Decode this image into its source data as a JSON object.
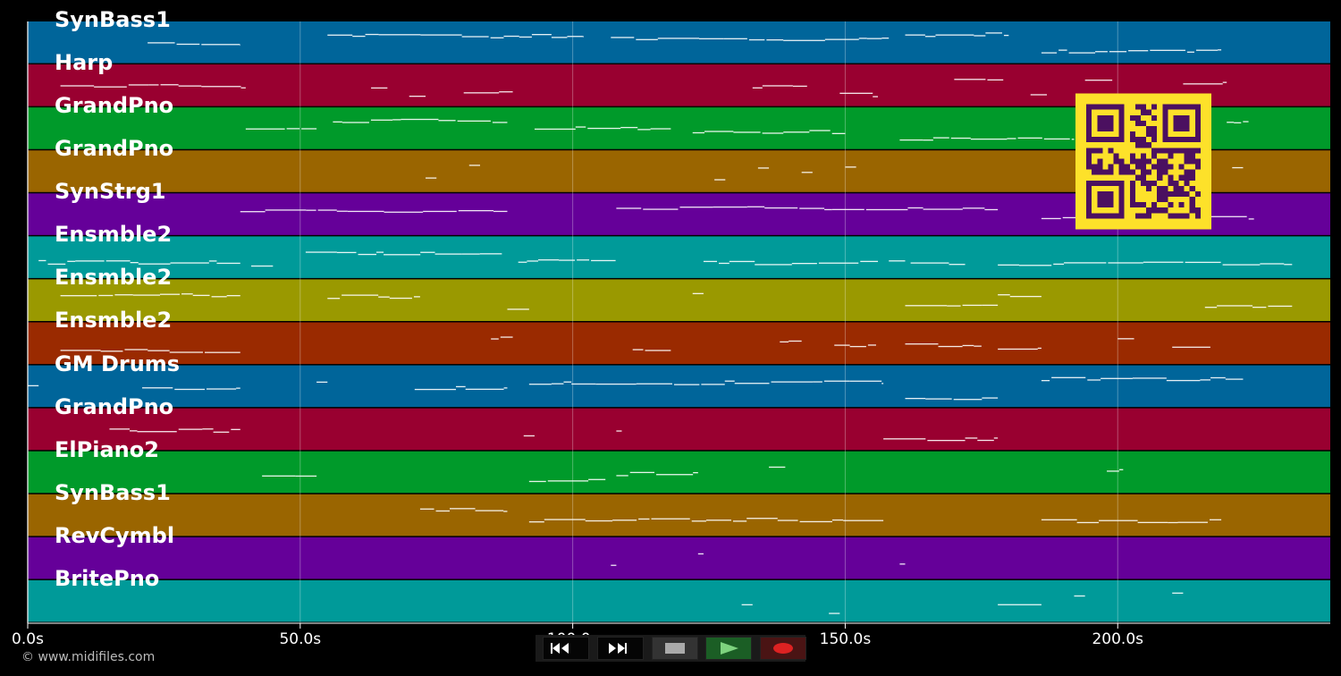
{
  "tracks": [
    {
      "name": "SynBass1",
      "color": "#00659a"
    },
    {
      "name": "Harp",
      "color": "#990030"
    },
    {
      "name": "GrandPno",
      "color": "#009a2a"
    },
    {
      "name": "GrandPno",
      "color": "#9a6500"
    },
    {
      "name": "SynStrg1",
      "color": "#650099"
    },
    {
      "name": "Ensmble2",
      "color": "#009a99"
    },
    {
      "name": "Ensmble2",
      "color": "#9a9900"
    },
    {
      "name": "Ensmble2",
      "color": "#9a2a00"
    },
    {
      "name": "GM Drums",
      "color": "#00659a"
    },
    {
      "name": "GrandPno",
      "color": "#990030"
    },
    {
      "name": "ElPiano2",
      "color": "#009a2a"
    },
    {
      "name": "SynBass1",
      "color": "#9a6500"
    },
    {
      "name": "RevCymbl",
      "color": "#650099"
    },
    {
      "name": "BritePno",
      "color": "#009a99"
    }
  ],
  "time_axis": {
    "ticks": [
      {
        "value": 0,
        "label": "0.0s"
      },
      {
        "value": 50,
        "label": "50.0s"
      },
      {
        "value": 100,
        "label": "100.0s"
      },
      {
        "value": 150,
        "label": "150.0s"
      },
      {
        "value": 200,
        "label": "200.0s"
      }
    ],
    "max_seconds": 239
  },
  "credit": "© www.midifiles.com",
  "transport": {
    "buttons": [
      {
        "name": "rewind-button",
        "icon": "rewind-icon"
      },
      {
        "name": "fast-forward-button",
        "icon": "fast-forward-icon"
      },
      {
        "name": "stop-button",
        "icon": "stop-icon"
      },
      {
        "name": "play-button",
        "icon": "play-icon"
      },
      {
        "name": "record-button",
        "icon": "record-icon"
      }
    ]
  },
  "qr_code": {
    "icon": "qr-code-icon",
    "fg": "#4b1060",
    "bg": "#fde12a"
  },
  "notes": [
    [
      [
        22,
        39
      ],
      [
        55,
        102
      ],
      [
        107,
        158
      ],
      [
        161,
        180
      ],
      [
        186,
        219
      ]
    ],
    [
      [
        6,
        40
      ],
      [
        63,
        66
      ],
      [
        70,
        73
      ],
      [
        80,
        89
      ],
      [
        133,
        143
      ],
      [
        149,
        156
      ],
      [
        170,
        179
      ],
      [
        184,
        187
      ],
      [
        194,
        199
      ],
      [
        212,
        220
      ]
    ],
    [
      [
        40,
        53
      ],
      [
        56,
        88
      ],
      [
        93,
        118
      ],
      [
        122,
        150
      ],
      [
        160,
        192
      ],
      [
        220,
        224
      ]
    ],
    [
      [
        73,
        75
      ],
      [
        81,
        83
      ],
      [
        126,
        128
      ],
      [
        134,
        136
      ],
      [
        142,
        144
      ],
      [
        150,
        152
      ],
      [
        221,
        223
      ]
    ],
    [
      [
        39,
        88
      ],
      [
        108,
        178
      ],
      [
        186,
        225
      ]
    ],
    [
      [
        2,
        39
      ],
      [
        41,
        45
      ],
      [
        51,
        87
      ],
      [
        90,
        108
      ],
      [
        124,
        156
      ],
      [
        158,
        161
      ],
      [
        162,
        172
      ],
      [
        178,
        232
      ]
    ],
    [
      [
        6,
        39
      ],
      [
        55,
        72
      ],
      [
        88,
        92
      ],
      [
        122,
        124
      ],
      [
        161,
        178
      ],
      [
        178,
        186
      ],
      [
        216,
        232
      ]
    ],
    [
      [
        6,
        39
      ],
      [
        85,
        89
      ],
      [
        111,
        118
      ],
      [
        138,
        142
      ],
      [
        148,
        156
      ],
      [
        161,
        175
      ],
      [
        178,
        186
      ],
      [
        200,
        203
      ],
      [
        210,
        217
      ]
    ],
    [
      [
        0,
        2
      ],
      [
        21,
        39
      ],
      [
        53,
        55
      ],
      [
        71,
        88
      ],
      [
        92,
        157
      ],
      [
        161,
        178
      ],
      [
        186,
        223
      ]
    ],
    [
      [
        15,
        39
      ],
      [
        91,
        93
      ],
      [
        108,
        109
      ],
      [
        157,
        178
      ]
    ],
    [
      [
        43,
        53
      ],
      [
        92,
        106
      ],
      [
        108,
        123
      ],
      [
        136,
        139
      ],
      [
        198,
        201
      ]
    ],
    [
      [
        72,
        88
      ],
      [
        92,
        157
      ],
      [
        186,
        219
      ]
    ],
    [
      [
        107,
        108
      ],
      [
        123,
        124
      ],
      [
        160,
        161
      ]
    ],
    [
      [
        131,
        133
      ],
      [
        147,
        149
      ],
      [
        178,
        186
      ],
      [
        192,
        194
      ],
      [
        210,
        212
      ]
    ]
  ]
}
